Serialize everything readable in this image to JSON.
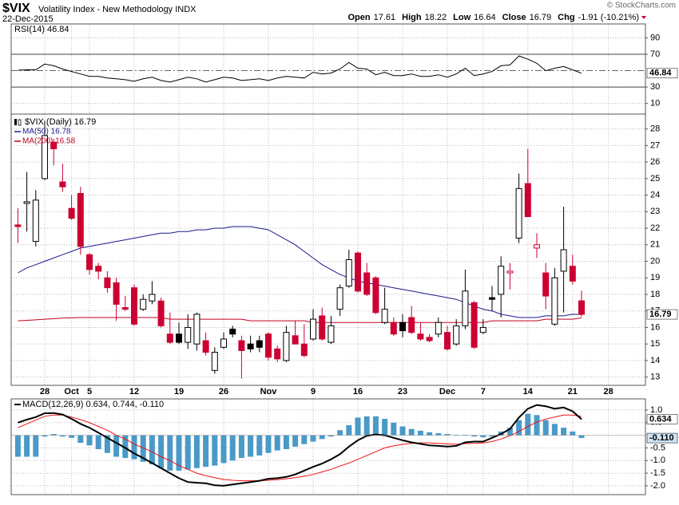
{
  "header": {
    "symbol": "$VIX",
    "name": "Volatility Index - New Methodology INDX",
    "date": "22-Dec-2015",
    "watermark": "© StockCharts.com",
    "quote": [
      {
        "label": "Open",
        "value": "17.61"
      },
      {
        "label": "High",
        "value": "18.22"
      },
      {
        "label": "Low",
        "value": "16.64"
      },
      {
        "label": "Close",
        "value": "16.79"
      },
      {
        "label": "Chg",
        "value": "-1.91 (-10.21%)"
      }
    ]
  },
  "chart_data": [
    {
      "type": "line",
      "legend": "RSI(14) 46.84",
      "badge": "46.84",
      "color": "#000000",
      "ylim": [
        -3,
        107
      ],
      "yticks": [
        10,
        30,
        70,
        90
      ],
      "levels": [
        70,
        50,
        30
      ],
      "values": [
        50.5,
        51,
        51,
        58,
        56,
        52,
        49,
        46,
        43,
        43,
        41,
        40,
        39,
        37,
        40,
        42,
        38,
        36,
        39,
        42,
        40,
        36,
        39,
        42,
        41,
        38,
        39,
        40,
        38,
        41,
        43,
        42,
        41,
        48,
        46,
        47,
        52,
        60,
        53,
        52,
        45,
        48,
        44,
        44,
        46,
        43,
        43,
        45,
        42,
        46,
        53,
        44,
        46,
        49,
        56,
        57,
        68,
        64,
        59,
        50,
        53,
        55,
        51,
        46.84
      ]
    },
    {
      "type": "candlestick",
      "legend": "$VIX (Daily) 16.79",
      "badge": "16.79",
      "up_color": "#000000",
      "down_color": "#cc0033",
      "ylim": [
        12.5,
        28.9
      ],
      "yticks": [
        13,
        14,
        15,
        16,
        17,
        18,
        19,
        20,
        21,
        22,
        23,
        24,
        25,
        26,
        27,
        28
      ],
      "grid": true,
      "categories": [
        null,
        null,
        null,
        "28",
        null,
        null,
        "Oct",
        null,
        "5",
        null,
        null,
        null,
        null,
        "12",
        null,
        null,
        null,
        null,
        "19",
        null,
        null,
        null,
        null,
        "26",
        null,
        null,
        null,
        null,
        "Nov",
        null,
        null,
        null,
        null,
        "9",
        null,
        null,
        null,
        null,
        "16",
        null,
        null,
        null,
        null,
        "23",
        null,
        null,
        null,
        null,
        "Dec",
        null,
        null,
        null,
        "7",
        null,
        null,
        null,
        null,
        "14",
        null,
        null,
        null,
        null,
        "21",
        null,
        null,
        null,
        "28"
      ],
      "open": [
        22.2,
        23.5,
        21.2,
        25.0,
        27.2,
        24.8,
        23.2,
        24.1,
        20.4,
        19.7,
        19.0,
        18.7,
        17.2,
        18.4,
        17.1,
        17.6,
        17.6,
        15.6,
        15.6,
        15.1,
        15.0,
        15.2,
        13.4,
        14.8,
        15.9,
        15.2,
        15.0,
        15.2,
        15.6,
        14.7,
        14.0,
        15.5,
        15.0,
        15.3,
        16.7,
        15.1,
        17.1,
        18.5,
        20.5,
        19.3,
        19.0,
        16.3,
        16.3,
        16.3,
        16.6,
        15.6,
        15.4,
        15.6,
        15.7,
        15.0,
        16.1,
        17.5,
        15.7,
        17.8,
        18.0,
        19.3,
        21.4,
        24.7,
        20.8,
        19.3,
        16.2,
        19.4,
        19.7,
        17.61,
        null,
        null,
        null
      ],
      "high": [
        23.2,
        25.4,
        24.3,
        28.5,
        27.4,
        25.9,
        24.0,
        24.5,
        20.5,
        19.9,
        19.4,
        19.0,
        17.9,
        18.6,
        18.0,
        18.8,
        17.8,
        16.9,
        16.3,
        16.8,
        16.9,
        15.7,
        14.8,
        15.7,
        16.1,
        15.5,
        15.5,
        15.5,
        15.7,
        14.9,
        16.1,
        16.4,
        16.2,
        17.1,
        17.2,
        16.7,
        18.6,
        20.7,
        20.6,
        19.9,
        19.1,
        18.4,
        16.6,
        16.8,
        17.3,
        16.3,
        15.6,
        16.6,
        16.1,
        16.5,
        19.5,
        17.6,
        16.5,
        18.5,
        20.3,
        19.9,
        25.3,
        26.8,
        21.7,
        19.9,
        19.6,
        23.3,
        20.4,
        18.22,
        null,
        null,
        null
      ],
      "low": [
        21.1,
        21.8,
        20.9,
        24.9,
        25.8,
        24.2,
        22.5,
        20.4,
        19.2,
        18.9,
        18.1,
        16.4,
        17.0,
        16.1,
        17.0,
        17.4,
        16.0,
        15.0,
        15.0,
        14.7,
        14.6,
        14.3,
        13.2,
        14.7,
        15.4,
        12.9,
        14.5,
        14.5,
        14.0,
        13.9,
        13.9,
        15.0,
        14.2,
        15.2,
        15.2,
        15.0,
        16.7,
        18.4,
        18.1,
        17.9,
        16.8,
        16.2,
        15.5,
        15.4,
        15.6,
        15.2,
        15.1,
        15.4,
        14.6,
        14.9,
        15.9,
        14.7,
        15.6,
        17.0,
        16.6,
        18.3,
        21.1,
        22.7,
        20.2,
        17.1,
        16.1,
        16.9,
        18.6,
        16.64,
        null,
        null,
        null
      ],
      "close": [
        22.1,
        23.6,
        23.7,
        27.6,
        26.8,
        24.5,
        22.6,
        20.9,
        19.5,
        19.4,
        18.4,
        17.4,
        17.1,
        16.2,
        17.7,
        18.0,
        16.1,
        15.1,
        15.1,
        16.0,
        16.8,
        14.5,
        14.5,
        15.3,
        15.6,
        14.6,
        14.7,
        14.8,
        14.2,
        14.1,
        15.7,
        15.0,
        14.3,
        16.5,
        15.3,
        16.1,
        18.4,
        20.1,
        18.2,
        18.0,
        16.9,
        17.1,
        15.6,
        15.8,
        15.7,
        15.3,
        15.2,
        16.3,
        14.7,
        16.1,
        18.2,
        14.8,
        16.0,
        17.7,
        19.7,
        19.4,
        24.4,
        22.7,
        21.0,
        17.9,
        19.0,
        20.7,
        18.8,
        16.79,
        null,
        null,
        null
      ],
      "series": [
        {
          "name": "MA(50) 16.78",
          "color": "#1a1a8c",
          "values": [
            19.3,
            19.6,
            19.8,
            20.0,
            20.2,
            20.4,
            20.6,
            20.8,
            20.9,
            21.0,
            21.1,
            21.2,
            21.3,
            21.4,
            21.5,
            21.6,
            21.7,
            21.7,
            21.8,
            21.8,
            21.9,
            21.9,
            22.0,
            22.0,
            22.1,
            22.1,
            22.1,
            22.0,
            21.9,
            21.6,
            21.3,
            21.0,
            20.6,
            20.2,
            19.8,
            19.5,
            19.2,
            19.0,
            18.8,
            18.7,
            18.6,
            18.5,
            18.4,
            18.3,
            18.2,
            18.1,
            18.0,
            17.9,
            17.8,
            17.7,
            17.5,
            17.3,
            17.1,
            17.0,
            16.8,
            16.7,
            16.6,
            16.6,
            16.6,
            16.7,
            16.7,
            16.7,
            16.8,
            16.78,
            null,
            null,
            null
          ]
        },
        {
          "name": "MA(200) 16.58",
          "color": "#c00020",
          "values": [
            16.4,
            16.43,
            16.46,
            16.5,
            16.53,
            16.56,
            16.58,
            16.6,
            16.6,
            16.6,
            16.6,
            16.6,
            16.6,
            16.6,
            16.6,
            16.6,
            16.6,
            16.5,
            16.5,
            16.5,
            16.5,
            16.5,
            16.5,
            16.5,
            16.5,
            16.5,
            16.4,
            16.4,
            16.4,
            16.4,
            16.4,
            16.4,
            16.4,
            16.3,
            16.3,
            16.3,
            16.3,
            16.3,
            16.3,
            16.3,
            16.3,
            16.3,
            16.3,
            16.3,
            16.3,
            16.3,
            16.3,
            16.3,
            16.3,
            16.3,
            16.3,
            16.3,
            16.3,
            16.4,
            16.4,
            16.4,
            16.4,
            16.4,
            16.4,
            16.5,
            16.5,
            16.5,
            16.5,
            16.58,
            null,
            null,
            null
          ]
        }
      ]
    },
    {
      "type": "bar",
      "legend": "MACD(12,26,9) 0.634, 0.744, -0.110",
      "badges": [
        "0.634",
        "-0.110"
      ],
      "ylim": [
        -2.35,
        1.44
      ],
      "yticks": [
        {
          "value": 1,
          "label": "1.0"
        },
        0.5,
        -0.5,
        {
          "value": -1,
          "label": "-1.0"
        },
        -1.5,
        {
          "value": -2,
          "label": "-2.0"
        }
      ],
      "series": [
        {
          "kind": "bar",
          "color": "#4a9ac8",
          "values": [
            -0.85,
            -0.85,
            -0.85,
            -0.05,
            0.05,
            -0.05,
            -0.1,
            -0.3,
            -0.4,
            -0.55,
            -0.7,
            -0.85,
            -0.9,
            -0.95,
            -1.05,
            -1.15,
            -1.3,
            -1.4,
            -1.4,
            -1.35,
            -1.3,
            -1.25,
            -1.2,
            -1.1,
            -1.0,
            -0.9,
            -0.85,
            -0.8,
            -0.7,
            -0.6,
            -0.55,
            -0.45,
            -0.35,
            -0.25,
            -0.15,
            -0.05,
            0.2,
            0.4,
            0.7,
            0.75,
            0.75,
            0.65,
            0.5,
            0.35,
            0.25,
            0.18,
            0.12,
            0.08,
            0.05,
            0.02,
            0.02,
            -0.05,
            -0.08,
            -0.05,
            0.15,
            0.3,
            0.6,
            0.85,
            0.8,
            0.6,
            0.45,
            0.3,
            0.15,
            -0.11
          ]
        },
        {
          "kind": "line",
          "color": "#ee1111",
          "values": [
            0.3,
            0.45,
            0.6,
            0.75,
            0.8,
            0.8,
            0.72,
            0.62,
            0.5,
            0.35,
            0.2,
            0.0,
            -0.15,
            -0.35,
            -0.5,
            -0.65,
            -0.85,
            -1.0,
            -1.2,
            -1.35,
            -1.5,
            -1.6,
            -1.68,
            -1.75,
            -1.78,
            -1.8,
            -1.8,
            -1.8,
            -1.78,
            -1.76,
            -1.72,
            -1.68,
            -1.62,
            -1.55,
            -1.45,
            -1.35,
            -1.22,
            -1.1,
            -0.95,
            -0.8,
            -0.65,
            -0.5,
            -0.42,
            -0.36,
            -0.32,
            -0.3,
            -0.3,
            -0.32,
            -0.34,
            -0.35,
            -0.33,
            -0.32,
            -0.3,
            -0.25,
            -0.15,
            -0.02,
            0.15,
            0.35,
            0.52,
            0.64,
            0.72,
            0.8,
            0.8,
            0.744
          ]
        },
        {
          "kind": "line",
          "color": "#000000",
          "values": [
            0.5,
            0.62,
            0.72,
            0.87,
            0.88,
            0.82,
            0.65,
            0.45,
            0.3,
            0.1,
            -0.1,
            -0.3,
            -0.5,
            -0.72,
            -0.9,
            -1.1,
            -1.3,
            -1.5,
            -1.7,
            -1.85,
            -1.88,
            -1.9,
            -1.98,
            -2.0,
            -1.95,
            -1.9,
            -1.85,
            -1.8,
            -1.72,
            -1.7,
            -1.65,
            -1.55,
            -1.4,
            -1.25,
            -1.12,
            -0.95,
            -0.75,
            -0.45,
            -0.2,
            -0.02,
            0.03,
            0.0,
            -0.1,
            -0.2,
            -0.28,
            -0.34,
            -0.4,
            -0.42,
            -0.45,
            -0.42,
            -0.28,
            -0.25,
            -0.25,
            -0.1,
            0.05,
            0.25,
            0.7,
            1.05,
            1.2,
            1.15,
            1.05,
            1.1,
            0.95,
            0.634
          ]
        }
      ]
    }
  ]
}
